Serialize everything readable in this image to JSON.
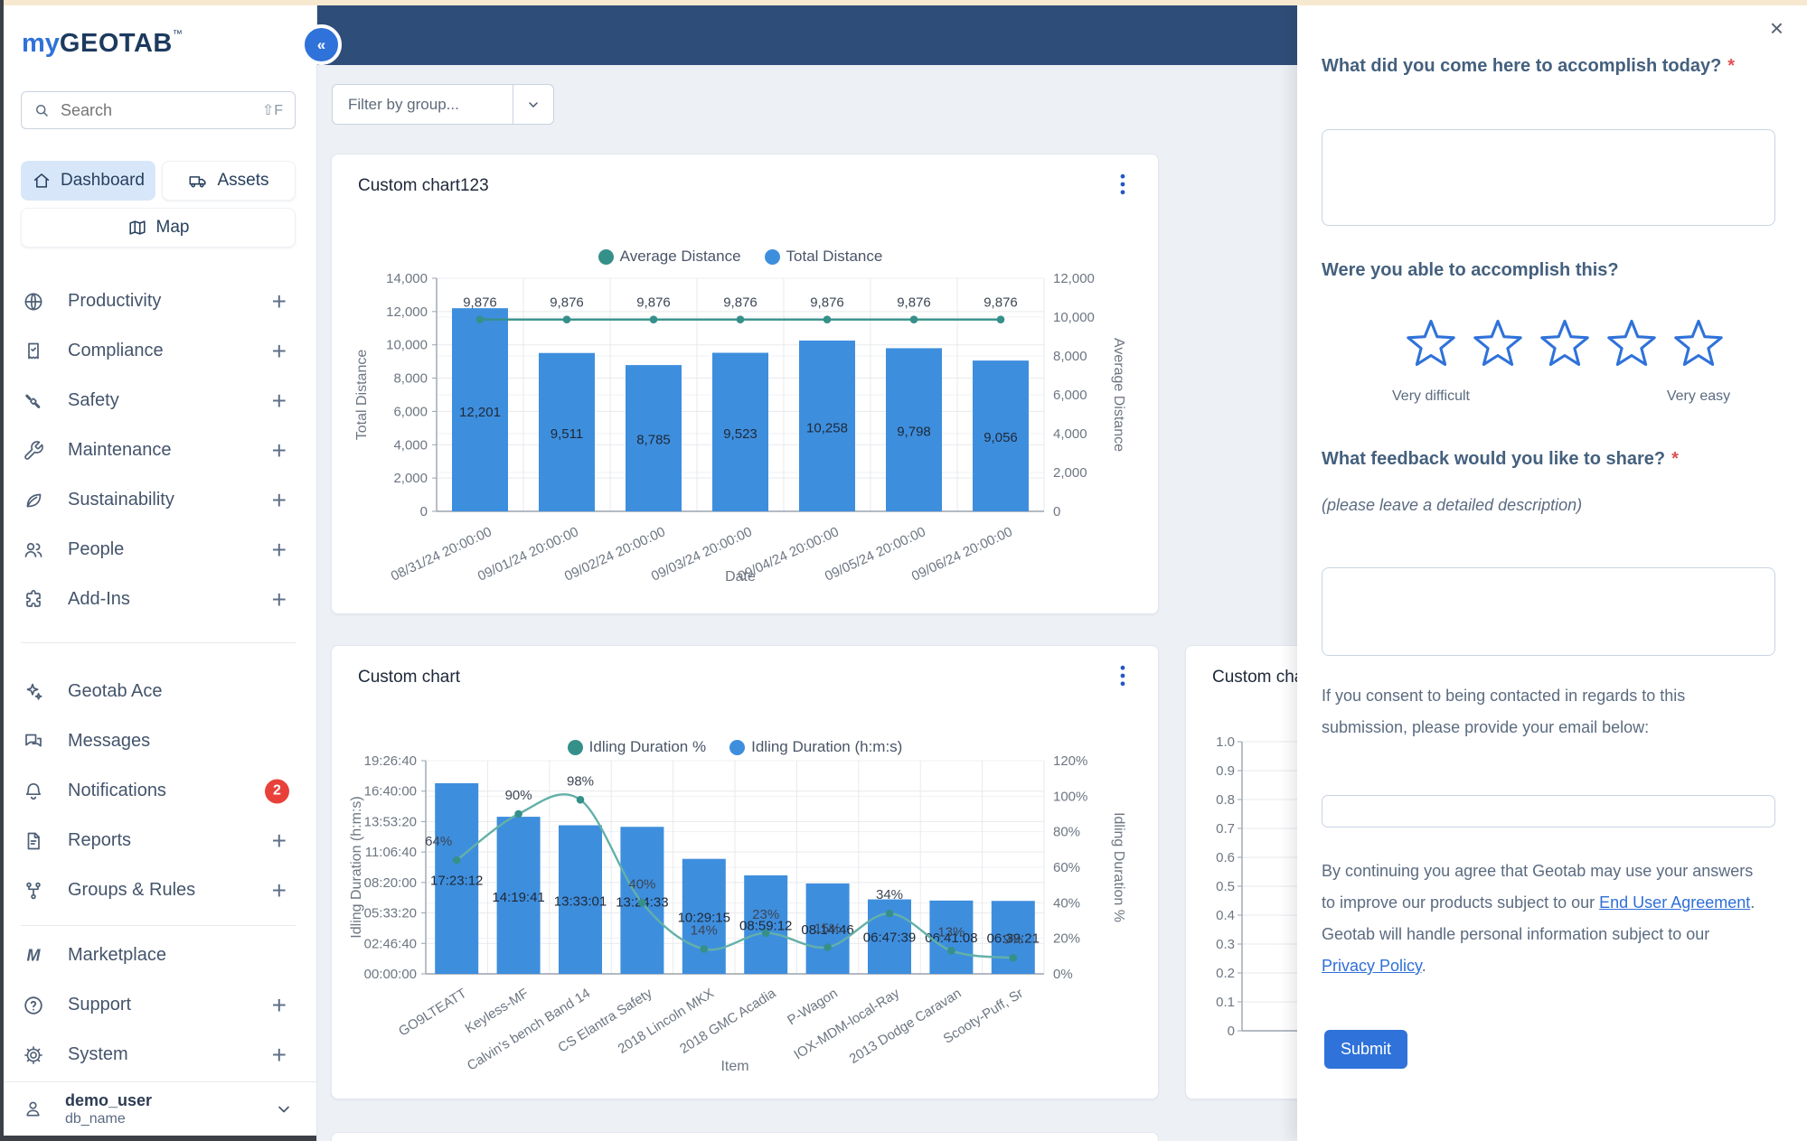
{
  "colors": {
    "accent_blue": "#2F72D9",
    "bar_blue": "#3E8EDE",
    "line_teal": "#35908A",
    "line_teal_soft": "#63B0A9",
    "header_navy": "#2E4D78",
    "badge_red": "#E8413A",
    "top_strip": "#F7E9CF",
    "required_red": "#E05252"
  },
  "sidebar": {
    "logo": {
      "brand_prefix": "my",
      "brand_name": "GEOTAB",
      "trademark": "™"
    },
    "search": {
      "placeholder": "Search",
      "shortcut": "⇧F"
    },
    "tabs": [
      {
        "label": "Dashboard",
        "icon": "home",
        "active": true
      },
      {
        "label": "Assets",
        "icon": "truck",
        "active": false
      }
    ],
    "map_button": {
      "label": "Map",
      "icon": "map"
    },
    "nav_primary": [
      {
        "label": "Productivity",
        "icon": "globe",
        "plus": true
      },
      {
        "label": "Compliance",
        "icon": "receipt",
        "plus": true
      },
      {
        "label": "Safety",
        "icon": "seatbelt",
        "plus": true
      },
      {
        "label": "Maintenance",
        "icon": "wrench",
        "plus": true
      },
      {
        "label": "Sustainability",
        "icon": "leaf",
        "plus": true
      },
      {
        "label": "People",
        "icon": "people",
        "plus": true
      },
      {
        "label": "Add-Ins",
        "icon": "puzzle",
        "plus": true
      }
    ],
    "nav_secondary": [
      {
        "label": "Geotab Ace",
        "icon": "sparkles"
      },
      {
        "label": "Messages",
        "icon": "chat"
      },
      {
        "label": "Notifications",
        "icon": "bell",
        "badge": "2"
      },
      {
        "label": "Reports",
        "icon": "document",
        "plus": true
      },
      {
        "label": "Groups & Rules",
        "icon": "hierarchy",
        "plus": true
      }
    ],
    "nav_tertiary": [
      {
        "label": "Marketplace",
        "icon": "marketplace"
      },
      {
        "label": "Support",
        "icon": "help",
        "plus": true
      },
      {
        "label": "System",
        "icon": "gear",
        "plus": true
      }
    ],
    "user": {
      "name": "demo_user",
      "database": "db_name"
    }
  },
  "header": {
    "collapse_glyph": "«"
  },
  "toolbar": {
    "filter_placeholder": "Filter by group..."
  },
  "chart_data": [
    {
      "type": "bar",
      "title": "Custom chart123",
      "categories": [
        "08/31/24 20:00:00",
        "09/01/24 20:00:00",
        "09/02/24 20:00:00",
        "09/03/24 20:00:00",
        "09/04/24 20:00:00",
        "09/05/24 20:00:00",
        "09/06/24 20:00:00"
      ],
      "series": [
        {
          "name": "Total Distance",
          "kind": "bar",
          "axis": "left",
          "values": [
            12201,
            9511,
            8785,
            9523,
            10258,
            9798,
            9056
          ],
          "value_labels": [
            "12,201",
            "9,511",
            "8,785",
            "9,523",
            "10,258",
            "9,798",
            "9,056"
          ]
        },
        {
          "name": "Average Distance",
          "kind": "line",
          "axis": "right",
          "values": [
            9876,
            9876,
            9876,
            9876,
            9876,
            9876,
            9876
          ],
          "value_labels": [
            "9,876",
            "9,876",
            "9,876",
            "9,876",
            "9,876",
            "9,876",
            "9,876"
          ]
        }
      ],
      "left_axis": {
        "title": "Total Distance",
        "min": 0,
        "max": 14000,
        "tick_labels": [
          "0",
          "2,000",
          "4,000",
          "6,000",
          "8,000",
          "10,000",
          "12,000",
          "14,000"
        ]
      },
      "right_axis": {
        "title": "Average Distance",
        "min": 0,
        "max": 12000,
        "tick_labels": [
          "0",
          "2,000",
          "4,000",
          "6,000",
          "8,000",
          "10,000",
          "12,000"
        ]
      },
      "xlabel": "Date",
      "legend_position": "top-center",
      "grid": true
    },
    {
      "type": "bar",
      "title": "Custom chart",
      "categories": [
        "GO9LTEATT",
        "Keyless-MF",
        "Calvin's bench Band 14",
        "CS Elantra Safety",
        "2018 Lincoln MKX",
        "2018 GMC Acadia",
        "P-Wagon",
        "IOX-MDM-local-Ray",
        "2013 Dodge Caravan",
        "Scooty-Puff, Sr"
      ],
      "series": [
        {
          "name": "Idling Duration (h:m:s)",
          "kind": "bar",
          "axis": "left",
          "values_hms": [
            "17:23:12",
            "14:19:41",
            "13:33:01",
            "13:24:33",
            "10:29:15",
            "08:59:12",
            "08:14:46",
            "06:47:39",
            "06:41:08",
            "06:39:21"
          ]
        },
        {
          "name": "Idling Duration %",
          "kind": "line",
          "axis": "right",
          "values": [
            64,
            90,
            98,
            40,
            14,
            23,
            15,
            34,
            13,
            9
          ],
          "value_labels": [
            "64%",
            "90%",
            "98%",
            "40%",
            "14%",
            "23%",
            "15%",
            "34%",
            "13%",
            "9%"
          ]
        }
      ],
      "left_axis": {
        "title": "Idling Duration (h:m:s)",
        "min": 0,
        "max_seconds": 70000,
        "tick_labels": [
          "00:00:00",
          "02:46:40",
          "05:33:20",
          "08:20:00",
          "11:06:40",
          "13:53:20",
          "16:40:00",
          "19:26:40"
        ]
      },
      "right_axis": {
        "title": "Idling Duration %",
        "min": 0,
        "max": 120,
        "tick_labels": [
          "0%",
          "20%",
          "40%",
          "60%",
          "80%",
          "100%",
          "120%"
        ]
      },
      "xlabel": "Item",
      "legend_position": "top-center",
      "grid": true
    },
    {
      "type": "line",
      "title": "Custom chart",
      "left_axis": {
        "min": 0,
        "max": 1.0,
        "tick_labels": [
          "0",
          "0.1",
          "0.2",
          "0.3",
          "0.4",
          "0.5",
          "0.6",
          "0.7",
          "0.8",
          "0.9",
          "1.0"
        ]
      },
      "note_partially_hidden": true
    }
  ],
  "survey": {
    "close_glyph": "×",
    "questions": {
      "accomplish": {
        "label": "What did you come here to accomplish today?",
        "required_mark": "*"
      },
      "able": {
        "label": "Were you able to accomplish this?",
        "scale_min_label": "Very difficult",
        "scale_max_label": "Very easy",
        "star_count": 5
      },
      "feedback": {
        "label": "What feedback would you like to share?",
        "required_mark": "*",
        "hint": "(please leave a detailed description)"
      }
    },
    "consent_lines": [
      "If you consent to being contacted in regards to this",
      "submission, please provide your email below:"
    ],
    "legal_lines": [
      {
        "text": "By continuing you agree that Geotab may use your answers"
      },
      {
        "text": "to improve our products subject to our ",
        "link": "End User Agreement",
        "suffix": "."
      },
      {
        "text": "Geotab will handle personal information subject to our"
      },
      {
        "text": "",
        "link": "Privacy Policy",
        "suffix": "."
      }
    ],
    "submit_label": "Submit"
  }
}
